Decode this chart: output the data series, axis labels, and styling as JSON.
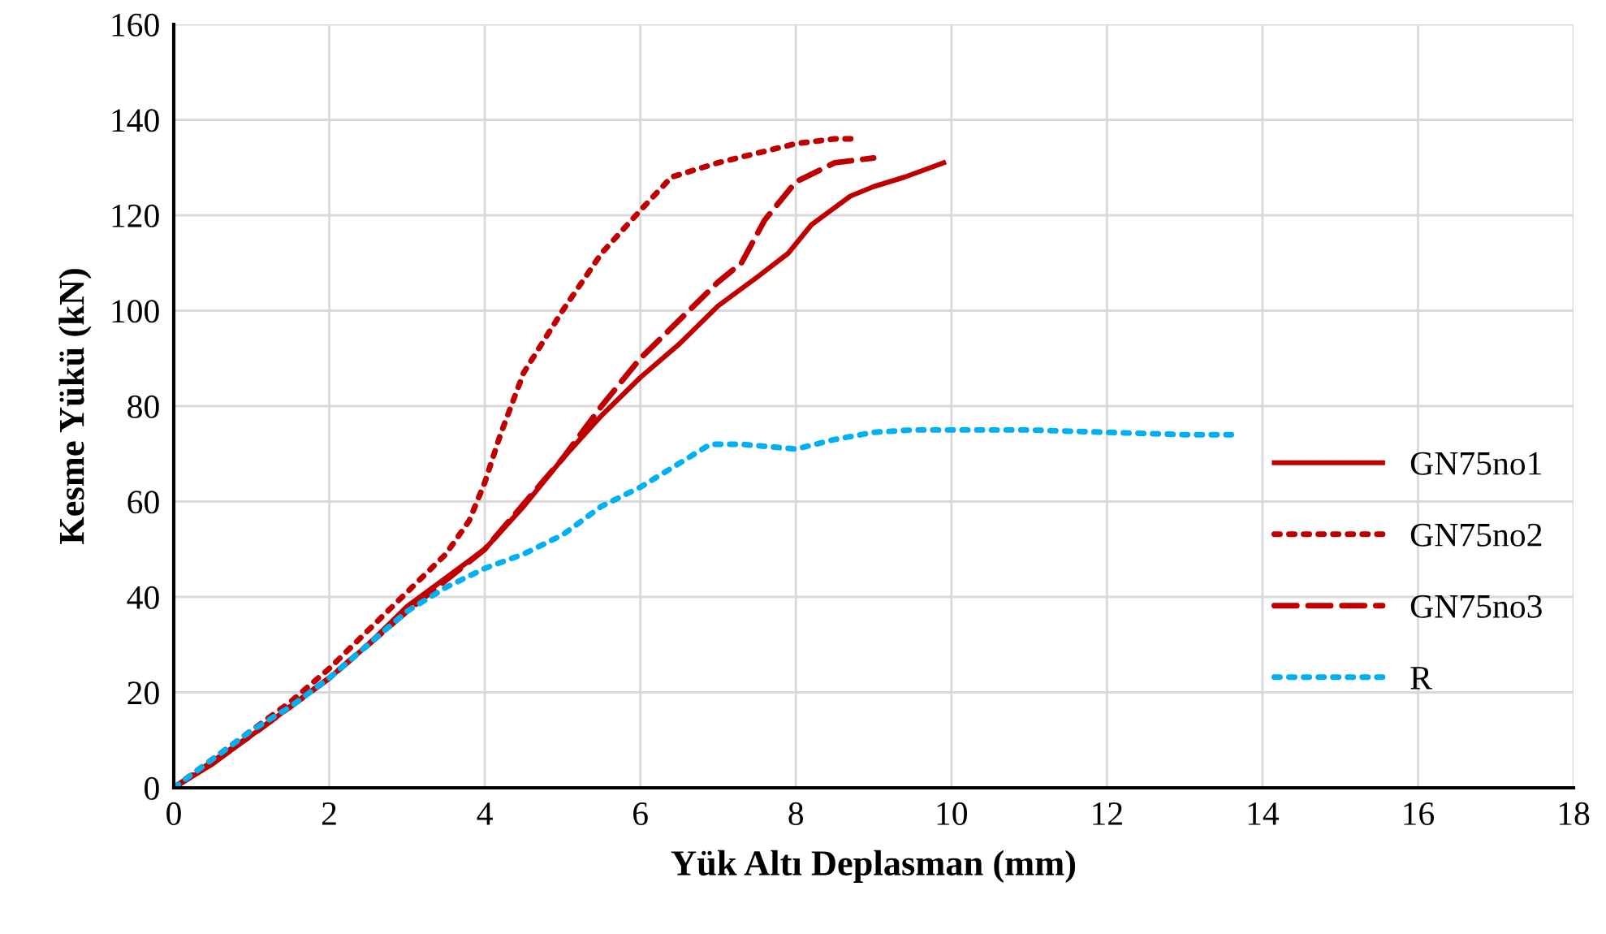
{
  "chart_data": {
    "type": "line",
    "xlabel": "Yük Altı Deplasman (mm)",
    "ylabel": "Kesme Yükü (kN)",
    "xlim": [
      0,
      18
    ],
    "ylim": [
      0,
      160
    ],
    "xticks": [
      0,
      2,
      4,
      6,
      8,
      10,
      12,
      14,
      16,
      18
    ],
    "yticks": [
      0,
      20,
      40,
      60,
      80,
      100,
      120,
      140,
      160
    ],
    "grid": true,
    "legend": "lower right",
    "marker": "none",
    "series": [
      {
        "name": "GN75no1",
        "color": "#c00000",
        "line_style": "solid",
        "x": [
          0,
          0.5,
          1,
          1.5,
          2,
          2.5,
          3,
          3.5,
          4,
          4.5,
          5,
          5.5,
          6,
          6.5,
          7,
          7.5,
          7.9,
          8.2,
          8.7,
          9.0,
          9.4,
          9.9
        ],
        "values": [
          0,
          5,
          11,
          17,
          23,
          30,
          38,
          44,
          50,
          59,
          69,
          78,
          86,
          93,
          101,
          107,
          112,
          118,
          124,
          126,
          128,
          131
        ]
      },
      {
        "name": "GN75no2",
        "color": "#c00000",
        "line_style": "dotted",
        "x": [
          0,
          0.5,
          1,
          1.5,
          2,
          2.5,
          3,
          3.5,
          3.8,
          4,
          4.2,
          4.5,
          5,
          5.5,
          6,
          6.4,
          6.8,
          7,
          7.5,
          8,
          8.5,
          8.8
        ],
        "values": [
          0,
          6,
          12,
          18,
          25,
          33,
          41,
          49,
          56,
          64,
          74,
          87,
          100,
          112,
          121,
          128,
          130,
          131,
          133,
          135,
          136,
          136
        ]
      },
      {
        "name": "GN75no3",
        "color": "#c00000",
        "line_style": "dashed",
        "x": [
          0,
          1,
          2,
          3,
          4,
          5,
          5.5,
          6,
          6.5,
          7,
          7.3,
          7.6,
          8,
          8.5,
          9
        ],
        "values": [
          0,
          11,
          23,
          37,
          50,
          69,
          80,
          90,
          98,
          106,
          110,
          119,
          127,
          131,
          132
        ]
      },
      {
        "name": "R",
        "color": "#00b0f0",
        "line_style": "dotted",
        "x": [
          0,
          0.5,
          1,
          1.5,
          2,
          2.5,
          3,
          3.5,
          4,
          4.5,
          5,
          5.5,
          6,
          6.5,
          6.9,
          7.3,
          8,
          8.5,
          9,
          9.5,
          10,
          11,
          12,
          13,
          13.6
        ],
        "values": [
          0,
          6,
          12,
          17,
          23,
          30,
          37,
          42,
          46,
          49,
          53,
          59,
          63,
          68,
          72,
          72,
          71,
          73,
          74.5,
          75,
          75,
          75,
          74.5,
          74,
          74
        ]
      }
    ]
  }
}
